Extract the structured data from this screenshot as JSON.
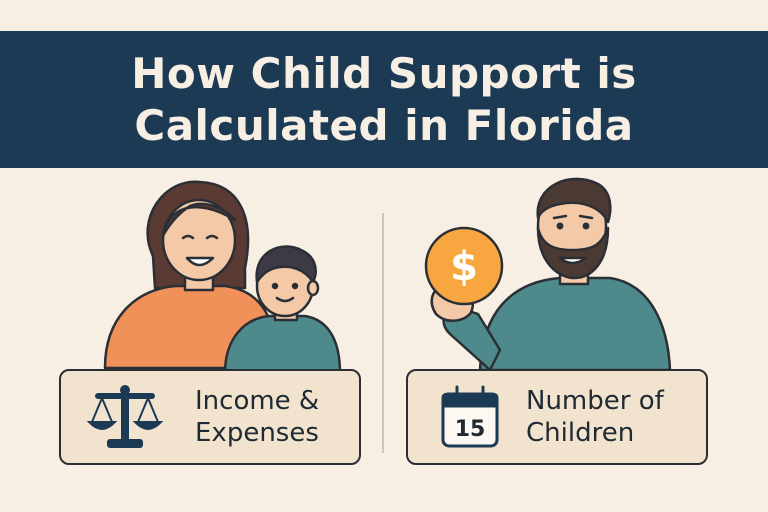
{
  "title": {
    "line1": "How Child Support is",
    "line2": "Calculated in Florida"
  },
  "colors": {
    "banner": "#1d3a55",
    "background": "#f8efe4",
    "card": "#f2e3cf",
    "coin": "#f7a640",
    "shirt_orange": "#f0915a",
    "shirt_teal": "#4e8a8b"
  },
  "cards": {
    "left": {
      "line1": "Income &",
      "line2": "Expenses",
      "icon": "scales-of-justice-icon"
    },
    "right": {
      "line1": "Number of",
      "line2": "Children",
      "icon": "calendar-icon",
      "calendar_day": "15"
    }
  },
  "coin_symbol": "$"
}
